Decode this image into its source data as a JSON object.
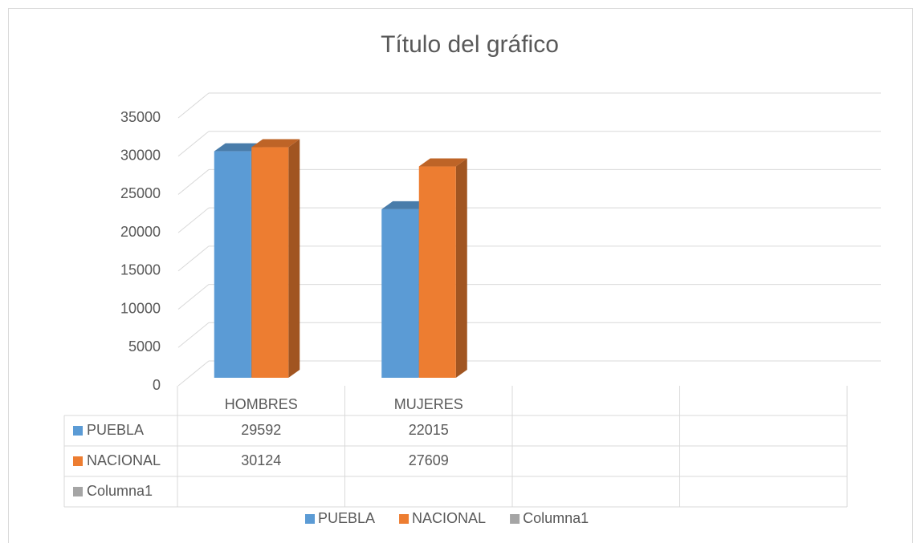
{
  "chart_data": {
    "type": "bar3d",
    "title": "Título del gráfico",
    "categories": [
      "HOMBRES",
      "MUJERES",
      null,
      null
    ],
    "series": [
      {
        "name": "PUEBLA",
        "color": "#5b9bd5",
        "values": [
          29592,
          22015,
          null,
          null
        ]
      },
      {
        "name": "NACIONAL",
        "color": "#ed7d31",
        "values": [
          30124,
          27609,
          null,
          null
        ]
      },
      {
        "name": "Columna1",
        "color": "#a5a5a5",
        "values": [
          null,
          null,
          null,
          null
        ]
      }
    ],
    "ylim": [
      0,
      35000
    ],
    "yticks": [
      0,
      5000,
      10000,
      15000,
      20000,
      25000,
      30000,
      35000
    ],
    "grid": true,
    "legend": "bottom",
    "data_table": true
  }
}
